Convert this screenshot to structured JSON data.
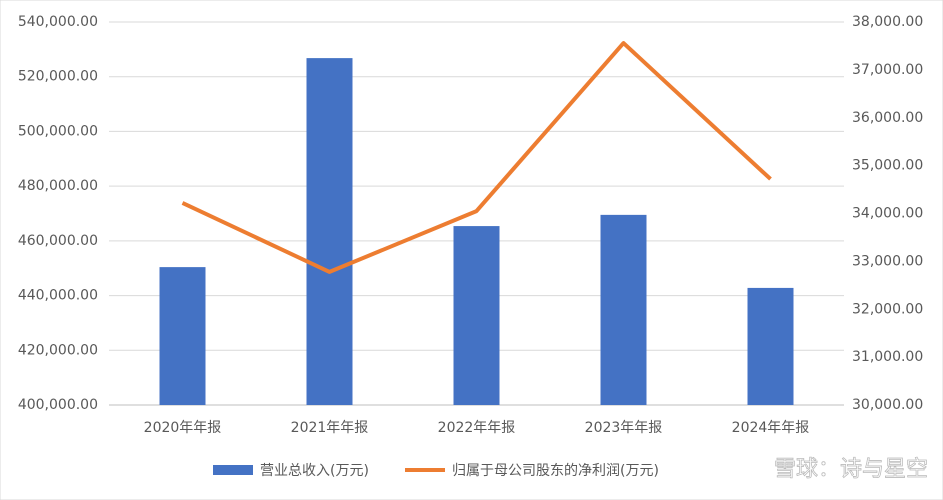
{
  "chart_data": {
    "type": "bar_line",
    "categories": [
      "2020年年报",
      "2021年年报",
      "2022年年报",
      "2023年年报",
      "2024年年报"
    ],
    "series": [
      {
        "name": "营业总收入(万元)",
        "type": "bar",
        "color": "#4472c4",
        "values": [
          450400,
          526800,
          465400,
          469500,
          442800
        ]
      },
      {
        "name": "归属于母公司股东的净利润(万元)",
        "type": "line",
        "color": "#ed7d31",
        "axis": "y2",
        "values": [
          34220,
          32780,
          34050,
          37560,
          34720
        ]
      }
    ],
    "ylim": [
      400000,
      540000
    ],
    "yticks": [
      {
        "value": 400000,
        "label": "400,000.00"
      },
      {
        "value": 420000,
        "label": "420,000.00"
      },
      {
        "value": 440000,
        "label": "440,000.00"
      },
      {
        "value": 460000,
        "label": "460,000.00"
      },
      {
        "value": 480000,
        "label": "480,000.00"
      },
      {
        "value": 500000,
        "label": "500,000.00"
      },
      {
        "value": 520000,
        "label": "520,000.00"
      },
      {
        "value": 540000,
        "label": "540,000.00"
      }
    ],
    "y2lim": [
      30000,
      38000
    ],
    "y2ticks": [
      {
        "value": 30000,
        "label": "30,000.00"
      },
      {
        "value": 31000,
        "label": "31,000.00"
      },
      {
        "value": 32000,
        "label": "32,000.00"
      },
      {
        "value": 33000,
        "label": "33,000.00"
      },
      {
        "value": 34000,
        "label": "34,000.00"
      },
      {
        "value": 35000,
        "label": "35,000.00"
      },
      {
        "value": 36000,
        "label": "36,000.00"
      },
      {
        "value": 37000,
        "label": "37,000.00"
      },
      {
        "value": 38000,
        "label": "38,000.00"
      }
    ],
    "grid": true,
    "legend": "bottom",
    "watermark": "雪球：诗与星空"
  }
}
